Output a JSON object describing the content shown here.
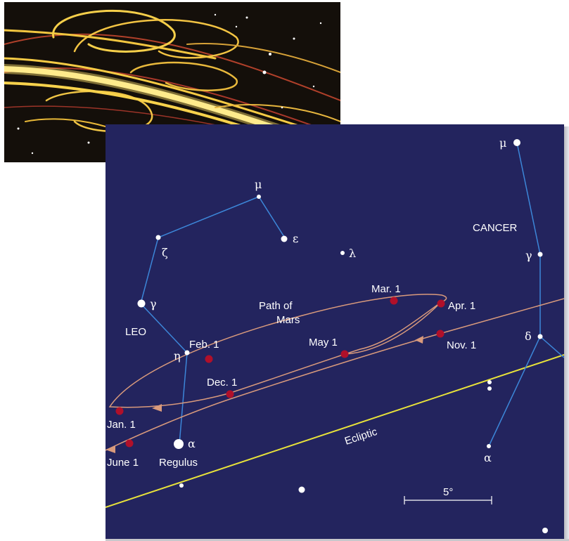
{
  "constellations": {
    "leo": {
      "name": "LEO",
      "stars": {
        "mu": "μ",
        "epsilon": "ε",
        "lambda": "λ",
        "zeta": "ζ",
        "gamma": "γ",
        "eta": "η",
        "alpha": "α"
      },
      "regulus": "Regulus"
    },
    "cancer": {
      "name": "CANCER",
      "stars": {
        "mu": "μ",
        "gamma": "γ",
        "delta": "δ",
        "alpha": "α"
      }
    }
  },
  "path": {
    "title_line1": "Path of",
    "title_line2": "Mars",
    "dates": {
      "mar1": "Mar. 1",
      "apr1": "Apr. 1",
      "nov1": "Nov. 1",
      "may1": "May 1",
      "feb1": "Feb. 1",
      "dec1": "Dec. 1",
      "jan1": "Jan. 1",
      "june1": "June 1"
    }
  },
  "ecliptic": "Ecliptic",
  "scale": "5°",
  "colors": {
    "sky": "#23245e",
    "constellation_line": "#3c86d8",
    "mars_path": "#d99a7c",
    "mars_dot": "#b0102a",
    "ecliptic": "#e8e23a"
  }
}
